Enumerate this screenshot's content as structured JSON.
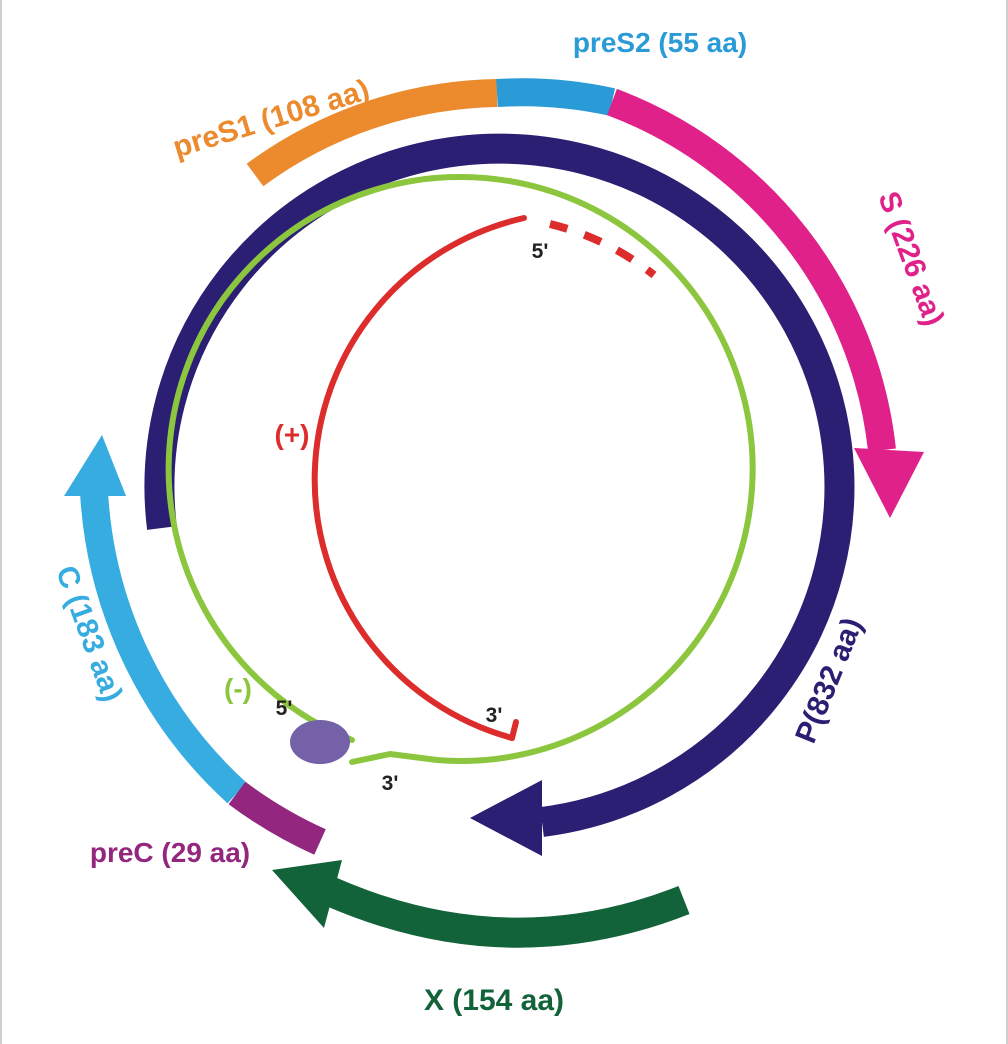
{
  "segments": {
    "preS1": {
      "label": "preS1 (108 aa)",
      "color": "#ec8a2e"
    },
    "preS2": {
      "label": "preS2 (55 aa)",
      "color": "#2a9bd6"
    },
    "S": {
      "label": "S (226 aa)",
      "color": "#e0218a"
    },
    "P": {
      "label": "P(832 aa)",
      "color": "#2a1f73"
    },
    "C": {
      "label": "C (183 aa)",
      "color": "#36ace0"
    },
    "preC": {
      "label": "preC (29 aa)",
      "color": "#93277f"
    },
    "X": {
      "label": "X (154 aa)",
      "color": "#12623a"
    }
  },
  "strands": {
    "minus": {
      "label": "(-)",
      "color": "#8cc63f",
      "end5": "5'",
      "end3": "3'"
    },
    "plus": {
      "label": "(+)",
      "color": "#dd2c2c",
      "end5": "5'",
      "end3": "3'"
    }
  },
  "primer": {
    "color": "#7461a8"
  }
}
